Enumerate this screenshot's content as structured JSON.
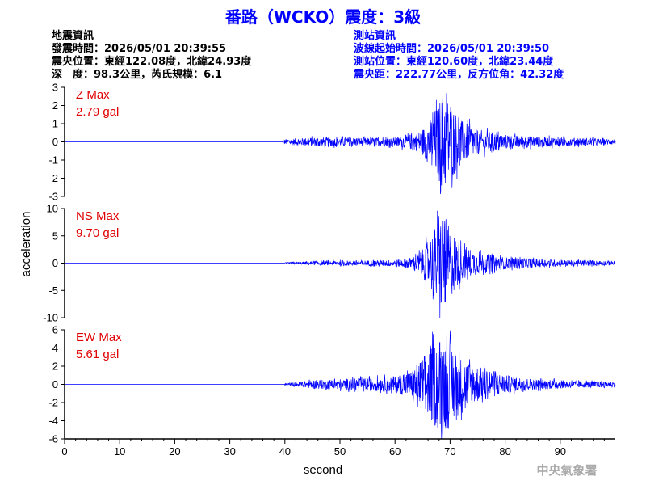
{
  "header": {
    "title": "番路（WCKO）震度：3級"
  },
  "quake_info": {
    "heading": "地震資訊",
    "origin_time": "發震時間：2026/05/01 20:39:55",
    "epicenter": "震央位置：東經122.08度，北緯24.93度",
    "depth_magnitude": "深　度：98.3公里，芮氏規模：6.1"
  },
  "station_info": {
    "heading": "測站資訊",
    "wave_start": "波線起始時間：2026/05/01 20:39:50",
    "station_location": "測站位置：東經120.60度，北緯23.44度",
    "distance_azimuth": "震央距：222.77公里，反方位角：42.32度"
  },
  "credit": "中央氣象署",
  "colors": {
    "title": "#0000ff",
    "station_text": "#0000ff",
    "quake_text": "#000000",
    "trace": "#0000ff",
    "max_label": "#e00000"
  },
  "chart_data": {
    "type": "line",
    "xlabel": "second",
    "ylabel": "acceleration",
    "xlim": [
      0,
      100
    ],
    "xticks": [
      0,
      10,
      20,
      30,
      40,
      50,
      60,
      70,
      80,
      90
    ],
    "panels": [
      {
        "component": "Z",
        "max_label": "Z Max",
        "max_value": "2.79 gal",
        "ylim": [
          -3,
          3
        ],
        "yticks": [
          3,
          2,
          1,
          0,
          -1,
          -2,
          -3
        ],
        "quiet_until_s": 39.5,
        "envelope": [
          [
            39.5,
            0.05
          ],
          [
            40,
            0.15
          ],
          [
            45,
            0.25
          ],
          [
            50,
            0.25
          ],
          [
            55,
            0.22
          ],
          [
            60,
            0.25
          ],
          [
            64,
            0.5
          ],
          [
            66,
            1.0
          ],
          [
            67.5,
            2.0
          ],
          [
            69,
            2.79
          ],
          [
            70,
            2.2
          ],
          [
            72,
            1.2
          ],
          [
            75,
            0.7
          ],
          [
            80,
            0.4
          ],
          [
            85,
            0.3
          ],
          [
            90,
            0.25
          ],
          [
            95,
            0.2
          ],
          [
            100,
            0.15
          ]
        ]
      },
      {
        "component": "NS",
        "max_label": "NS Max",
        "max_value": "9.70 gal",
        "ylim": [
          -10,
          10
        ],
        "yticks": [
          10,
          5,
          0,
          -5,
          -10
        ],
        "quiet_until_s": 40.0,
        "envelope": [
          [
            40,
            0.1
          ],
          [
            45,
            0.35
          ],
          [
            50,
            0.45
          ],
          [
            55,
            0.5
          ],
          [
            60,
            0.6
          ],
          [
            63,
            1.0
          ],
          [
            65,
            2.5
          ],
          [
            67,
            6.0
          ],
          [
            68.5,
            9.7
          ],
          [
            70,
            6.5
          ],
          [
            72,
            3.5
          ],
          [
            75,
            2.0
          ],
          [
            80,
            1.1
          ],
          [
            85,
            0.8
          ],
          [
            90,
            0.6
          ],
          [
            95,
            0.5
          ],
          [
            100,
            0.4
          ]
        ]
      },
      {
        "component": "EW",
        "max_label": "EW Max",
        "max_value": "5.61 gal",
        "ylim": [
          -6,
          6
        ],
        "yticks": [
          6,
          4,
          2,
          0,
          -2,
          -4,
          -6
        ],
        "quiet_until_s": 40.0,
        "envelope": [
          [
            40,
            0.1
          ],
          [
            45,
            0.45
          ],
          [
            50,
            0.6
          ],
          [
            55,
            0.7
          ],
          [
            60,
            0.9
          ],
          [
            63,
            1.5
          ],
          [
            65,
            3.0
          ],
          [
            67,
            4.5
          ],
          [
            68.5,
            5.61
          ],
          [
            70,
            4.8
          ],
          [
            72,
            3.0
          ],
          [
            75,
            2.0
          ],
          [
            80,
            1.0
          ],
          [
            85,
            0.6
          ],
          [
            90,
            0.45
          ],
          [
            95,
            0.35
          ],
          [
            100,
            0.3
          ]
        ]
      }
    ]
  }
}
